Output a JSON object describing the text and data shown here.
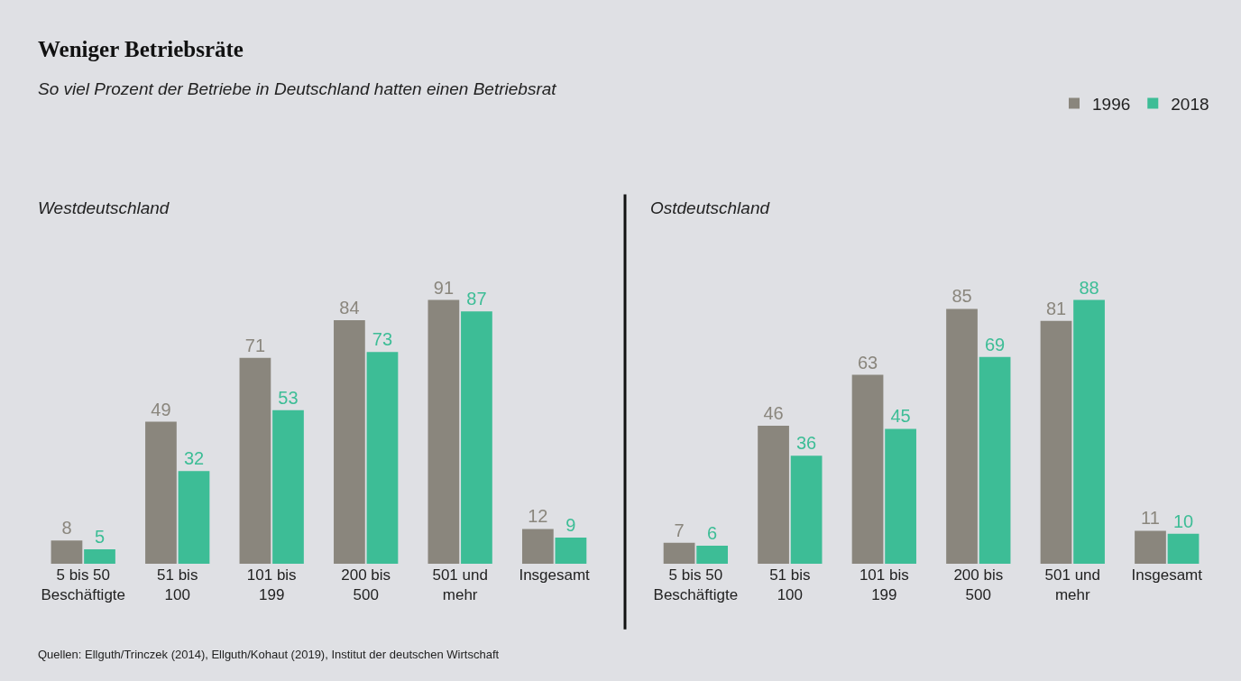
{
  "chart_data": [
    {
      "type": "bar",
      "title": "Weniger Betriebsräte",
      "subtitle": "So viel Prozent der Betriebe in Deutschland hatten einen Betriebsrat",
      "annotations": [
        "Westdeutschland",
        "Quellen: Ellguth/Trinczek (2014), Ellguth/Kohaut (2019), Institut der deutschen Wirtschaft"
      ],
      "categories": [
        "5 bis 50\nBeschäftigte",
        "51 bis\n100",
        "101 bis\n199",
        "200 bis\n500",
        "501 und\nmehr",
        "Insgesamt"
      ],
      "series": [
        {
          "name": "1996",
          "color": "#8a867d",
          "values": [
            8,
            49,
            71,
            84,
            91,
            12
          ]
        },
        {
          "name": "2018",
          "color": "#3dbd96",
          "values": [
            5,
            32,
            53,
            73,
            87,
            9
          ]
        }
      ],
      "data_labels": true,
      "legend": "top right",
      "grid": false
    },
    {
      "type": "bar",
      "title": "Ostdeutschland",
      "categories": [
        "5 bis 50\nBeschäftigte",
        "51 bis\n100",
        "101 bis\n199",
        "200 bis\n500",
        "501 und\nmehr",
        "Insgesamt"
      ],
      "series": [
        {
          "name": "1996",
          "color": "#8a867d",
          "values": [
            7,
            46,
            63,
            85,
            81,
            11
          ]
        },
        {
          "name": "2018",
          "color": "#3dbd96",
          "values": [
            6,
            36,
            45,
            69,
            88,
            10
          ]
        }
      ],
      "data_labels": true,
      "legend": false,
      "grid": false
    }
  ]
}
